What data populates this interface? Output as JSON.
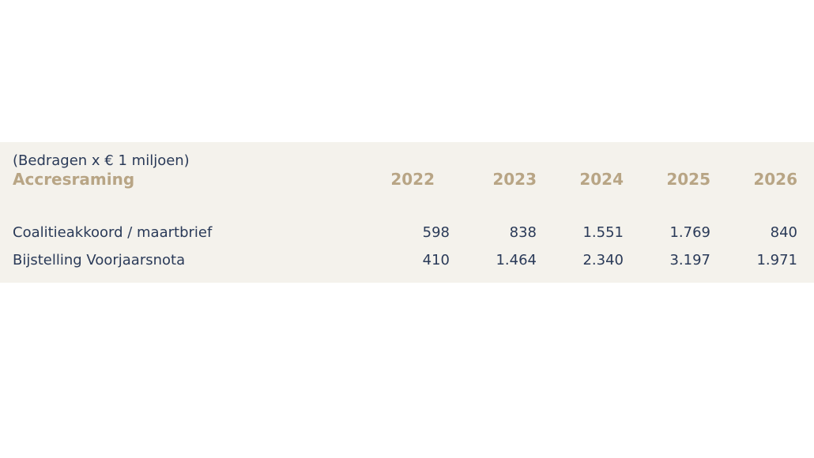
{
  "table": {
    "caption": "(Bedragen x € 1 miljoen)",
    "title": "Accresraming",
    "years": [
      "2022",
      "2023",
      "2024",
      "2025",
      "2026"
    ],
    "rows": [
      {
        "label": "Coalitieakkoord / maartbrief",
        "values": [
          "598",
          "838",
          "1.551",
          "1.769",
          "840"
        ]
      },
      {
        "label": "Bijstelling Voorjaarsnota",
        "values": [
          "410",
          "1.464",
          "2.340",
          "3.197",
          "1.971"
        ]
      }
    ]
  }
}
